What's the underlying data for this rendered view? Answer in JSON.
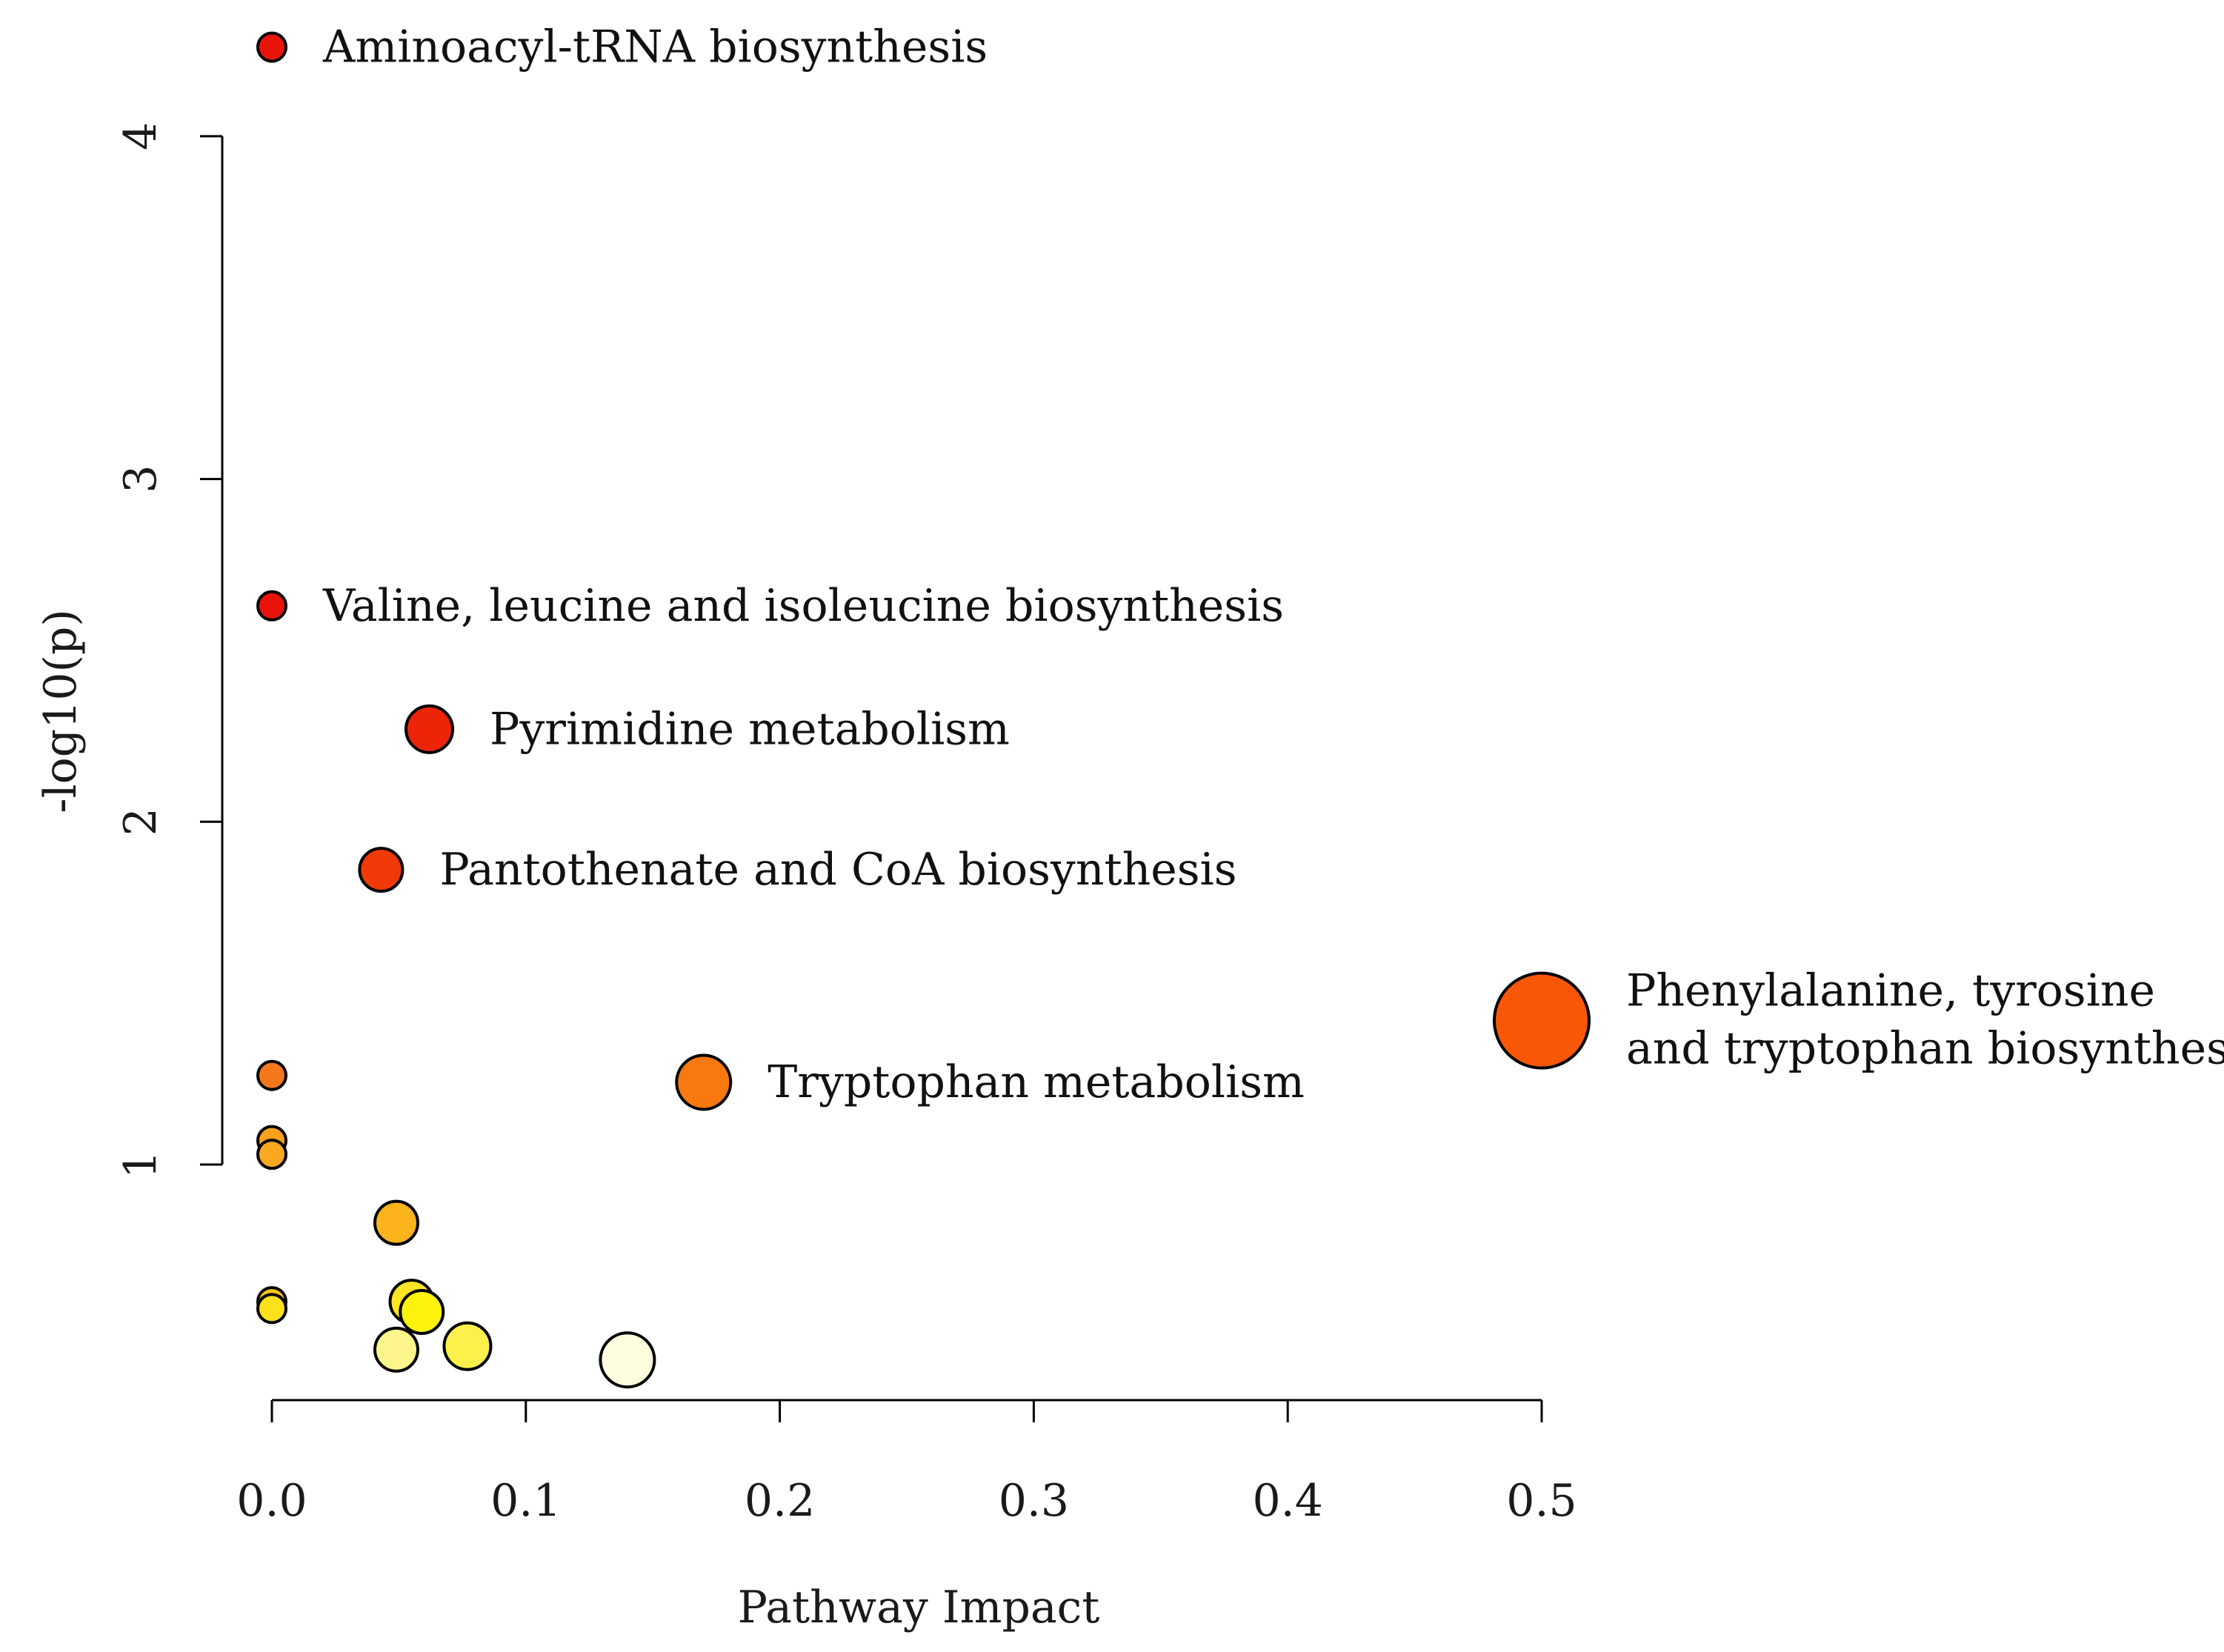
{
  "chart_data": {
    "type": "scatter",
    "title": "",
    "xlabel": "Pathway Impact",
    "ylabel": "-log10(p)",
    "xlim": [
      0,
      0.5
    ],
    "ylim": [
      0.35,
      4
    ],
    "x_ticks": [
      "0.0",
      "0.1",
      "0.2",
      "0.3",
      "0.4",
      "0.5"
    ],
    "x_tick_values": [
      0,
      0.1,
      0.2,
      0.3,
      0.4,
      0.5
    ],
    "y_ticks": [
      "1",
      "2",
      "3",
      "4"
    ],
    "y_tick_values": [
      1,
      2,
      3,
      4
    ],
    "grid": false,
    "points": [
      {
        "label": "Aminoacyl-tRNA biosynthesis",
        "x": 0.0,
        "y": 4.26,
        "size": 0.1,
        "color": "#e8140c"
      },
      {
        "label": "Valine, leucine and isoleucine biosynthesis",
        "x": 0.0,
        "y": 2.63,
        "size": 0.1,
        "color": "#e8140c"
      },
      {
        "label": "Pyrimidine metabolism",
        "x": 0.062,
        "y": 2.27,
        "size": 0.35,
        "color": "#ee2408"
      },
      {
        "label": "Pantothenate and CoA biosynthesis",
        "x": 0.043,
        "y": 1.86,
        "size": 0.3,
        "color": "#ef3a08"
      },
      {
        "label": "Phenylalanine, tyrosine and tryptophan biosynthesis",
        "x": 0.5,
        "y": 1.42,
        "size": 1.0,
        "color": "#f95708"
      },
      {
        "label": "Tryptophan metabolism",
        "x": 0.17,
        "y": 1.24,
        "size": 0.45,
        "color": "#f97810"
      },
      {
        "label": "",
        "x": 0.0,
        "y": 1.26,
        "size": 0.1,
        "color": "#f4771c"
      },
      {
        "label": "",
        "x": 0.0,
        "y": 1.07,
        "size": 0.1,
        "color": "#f9a01c"
      },
      {
        "label": "",
        "x": 0.0,
        "y": 1.03,
        "size": 0.1,
        "color": "#f9a820"
      },
      {
        "label": "",
        "x": 0.049,
        "y": 0.83,
        "size": 0.3,
        "color": "#fbb41c"
      },
      {
        "label": "",
        "x": 0.0,
        "y": 0.6,
        "size": 0.1,
        "color": "#f9c81c"
      },
      {
        "label": "",
        "x": 0.0,
        "y": 0.58,
        "size": 0.1,
        "color": "#fce21c"
      },
      {
        "label": "",
        "x": 0.055,
        "y": 0.6,
        "size": 0.3,
        "color": "#fde425"
      },
      {
        "label": "",
        "x": 0.059,
        "y": 0.57,
        "size": 0.3,
        "color": "#fdf20c"
      },
      {
        "label": "",
        "x": 0.077,
        "y": 0.47,
        "size": 0.35,
        "color": "#fcf04c"
      },
      {
        "label": "",
        "x": 0.049,
        "y": 0.46,
        "size": 0.3,
        "color": "#fcf58c"
      },
      {
        "label": "",
        "x": 0.14,
        "y": 0.43,
        "size": 0.45,
        "color": "#fefde0"
      }
    ]
  }
}
